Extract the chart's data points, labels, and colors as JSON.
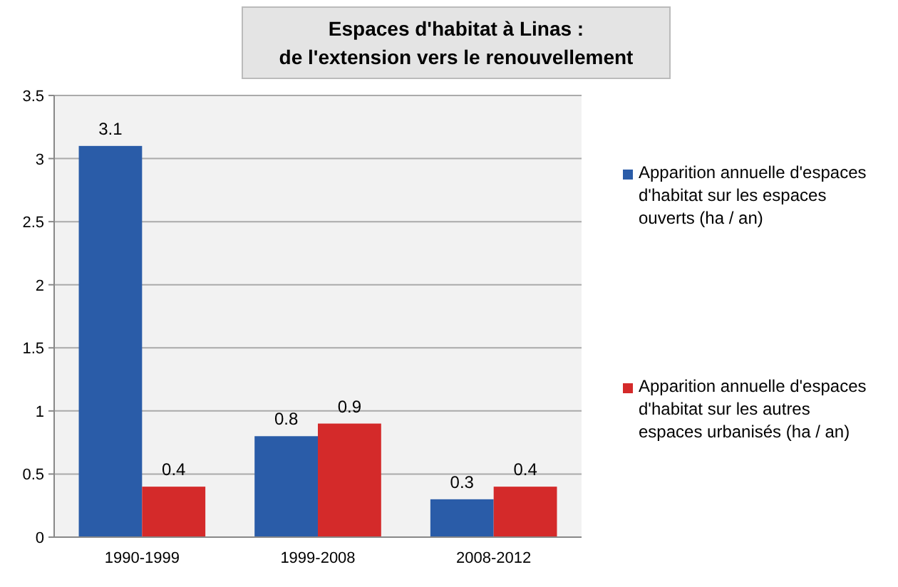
{
  "chart_data": {
    "type": "bar",
    "title": "Espaces d'habitat à Linas :\nde l'extension vers le renouvellement",
    "categories": [
      "1990-1999",
      "1999-2008",
      "2008-2012"
    ],
    "series": [
      {
        "name": "Apparition annuelle d'espaces d'habitat sur les espaces ouverts (ha / an)",
        "color": "#2a5ca8",
        "values": [
          3.1,
          0.8,
          0.3
        ]
      },
      {
        "name": "Apparition annuelle d'espaces d'habitat sur les autres espaces urbanisés (ha / an)",
        "color": "#d42a2a",
        "values": [
          0.4,
          0.9,
          0.4
        ]
      }
    ],
    "ylim": [
      0,
      3.5
    ],
    "yticks": [
      0,
      0.5,
      1,
      1.5,
      2,
      2.5,
      3,
      3.5
    ],
    "grid": "y",
    "legend": "right",
    "data_labels": true
  }
}
